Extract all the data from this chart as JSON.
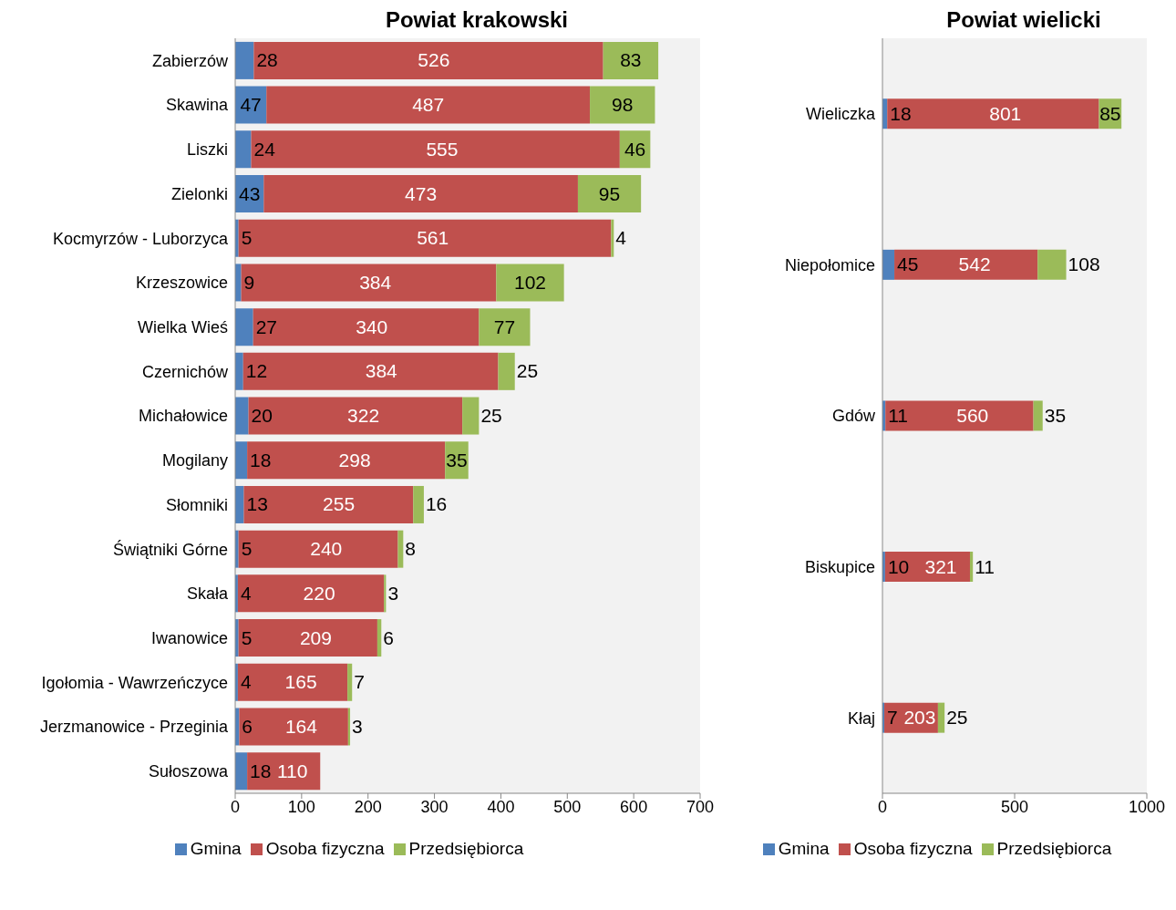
{
  "chart_data": [
    {
      "type": "bar",
      "title": "Powiat krakowski",
      "orientation": "horizontal",
      "stacked": true,
      "data_labels": true,
      "legend": "bottom",
      "categories": [
        "Zabierzów",
        "Skawina",
        "Liszki",
        "Zielonki",
        "Kocmyrzów - Luborzyca",
        "Krzeszowice",
        "Wielka Wieś",
        "Czernichów",
        "Michałowice",
        "Mogilany",
        "Słomniki",
        "Świątniki Górne",
        "Skała",
        "Iwanowice",
        "Igołomia - Wawrzeńczyce",
        "Jerzmanowice - Przeginia",
        "Sułoszowa"
      ],
      "series": [
        {
          "name": "Gmina",
          "color": "#4f81bd",
          "values": [
            28,
            47,
            24,
            43,
            5,
            9,
            27,
            12,
            20,
            18,
            13,
            5,
            4,
            5,
            4,
            6,
            18
          ]
        },
        {
          "name": "Osoba fizyczna",
          "color": "#c0504d",
          "values": [
            526,
            487,
            555,
            473,
            561,
            384,
            340,
            384,
            322,
            298,
            255,
            240,
            220,
            209,
            165,
            164,
            110
          ]
        },
        {
          "name": "Przedsiębiorca",
          "color": "#9bbb59",
          "values": [
            83,
            98,
            46,
            95,
            4,
            102,
            77,
            25,
            25,
            35,
            16,
            8,
            3,
            6,
            7,
            3,
            null
          ]
        }
      ],
      "xlim": [
        0,
        700
      ],
      "xticks": [
        0,
        100,
        200,
        300,
        400,
        500,
        600,
        700
      ]
    },
    {
      "type": "bar",
      "title": "Powiat wielicki",
      "orientation": "horizontal",
      "stacked": true,
      "data_labels": true,
      "legend": "bottom",
      "categories": [
        "Wieliczka",
        "Niepołomice",
        "Gdów",
        "Biskupice",
        "Kłaj"
      ],
      "series": [
        {
          "name": "Gmina",
          "color": "#4f81bd",
          "values": [
            18,
            45,
            11,
            10,
            7
          ]
        },
        {
          "name": "Osoba fizyczna",
          "color": "#c0504d",
          "values": [
            801,
            542,
            560,
            321,
            203
          ]
        },
        {
          "name": "Przedsiębiorca",
          "color": "#9bbb59",
          "values": [
            85,
            108,
            35,
            11,
            25
          ]
        }
      ],
      "xlim": [
        0,
        1000
      ],
      "xticks": [
        0,
        500,
        1000
      ]
    }
  ]
}
